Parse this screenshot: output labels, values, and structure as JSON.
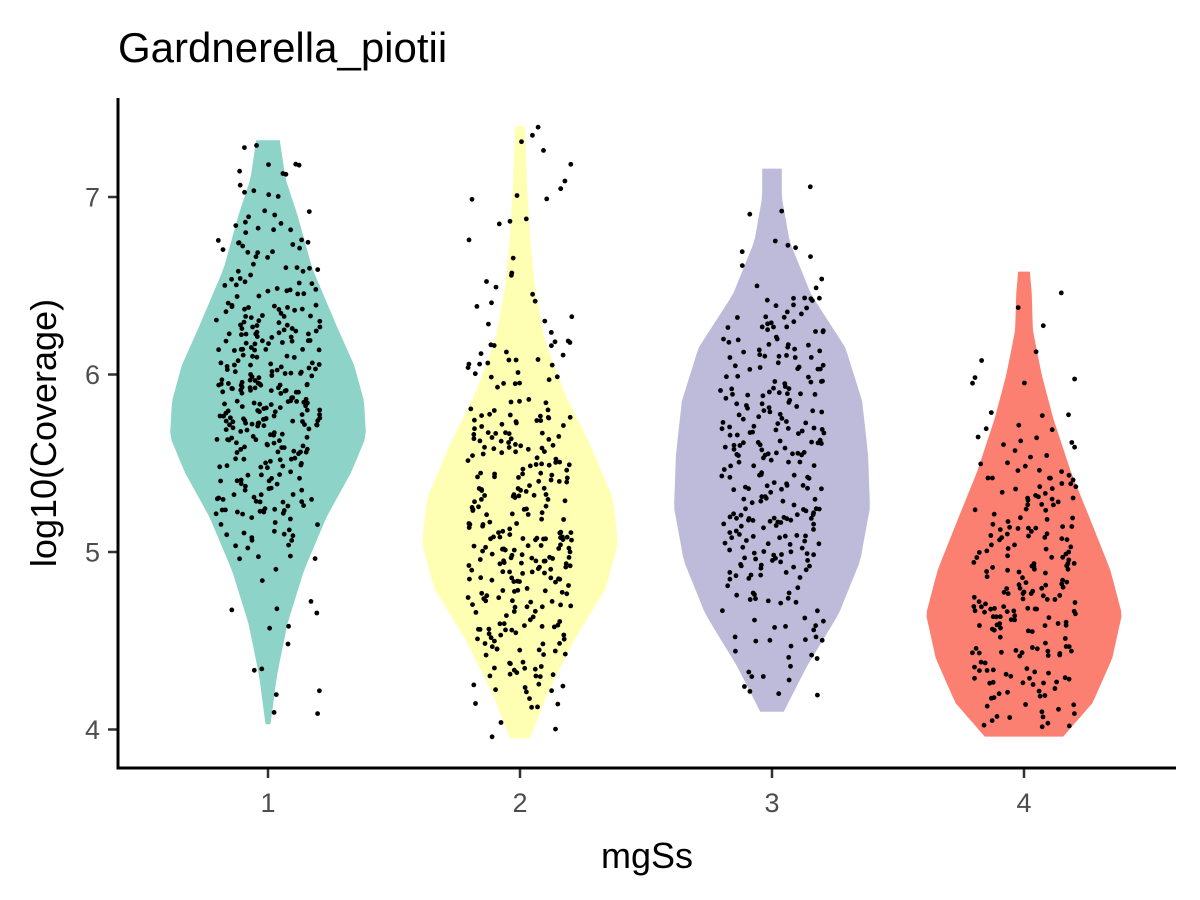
{
  "chart_data": {
    "type": "violin",
    "title": "Gardnerella_piotii",
    "xlabel": "mgSs",
    "ylabel": "log10(Coverage)",
    "categories": [
      "1",
      "2",
      "3",
      "4"
    ],
    "yticks": [
      "4",
      "5",
      "6",
      "7"
    ],
    "ylim": [
      3.8,
      7.55
    ],
    "colors": [
      "#8dd3c7",
      "#ffffb3",
      "#bebada",
      "#fb8072"
    ],
    "point_color": "#000000",
    "grid": false,
    "legend": "none",
    "series": [
      {
        "category": "1",
        "min": 4.03,
        "max": 7.32,
        "median": 5.75,
        "n_points": 360,
        "jitter_seed": 11,
        "density_profile": [
          [
            4.03,
            0.025
          ],
          [
            4.3,
            0.09
          ],
          [
            4.6,
            0.2
          ],
          [
            4.9,
            0.37
          ],
          [
            5.2,
            0.6
          ],
          [
            5.45,
            0.85
          ],
          [
            5.65,
            1.0
          ],
          [
            5.85,
            0.98
          ],
          [
            6.05,
            0.88
          ],
          [
            6.3,
            0.68
          ],
          [
            6.6,
            0.45
          ],
          [
            6.9,
            0.3
          ],
          [
            7.1,
            0.18
          ],
          [
            7.32,
            0.12
          ]
        ],
        "point_levels": [
          [
            4.03,
            0.02
          ],
          [
            4.3,
            0.04
          ],
          [
            4.6,
            0.09
          ],
          [
            4.9,
            0.17
          ],
          [
            5.2,
            0.3
          ],
          [
            5.45,
            0.48
          ],
          [
            5.65,
            0.62
          ],
          [
            5.85,
            0.66
          ],
          [
            6.05,
            0.6
          ],
          [
            6.3,
            0.45
          ],
          [
            6.6,
            0.28
          ],
          [
            6.9,
            0.15
          ],
          [
            7.1,
            0.08
          ],
          [
            7.32,
            0.03
          ]
        ]
      },
      {
        "category": "2",
        "min": 3.95,
        "max": 7.4,
        "median": 5.2,
        "n_points": 330,
        "jitter_seed": 23,
        "density_profile": [
          [
            3.95,
            0.1
          ],
          [
            4.2,
            0.28
          ],
          [
            4.5,
            0.55
          ],
          [
            4.8,
            0.88
          ],
          [
            5.05,
            1.0
          ],
          [
            5.3,
            0.95
          ],
          [
            5.6,
            0.72
          ],
          [
            5.9,
            0.45
          ],
          [
            6.2,
            0.25
          ],
          [
            6.5,
            0.15
          ],
          [
            6.8,
            0.1
          ],
          [
            7.1,
            0.07
          ],
          [
            7.4,
            0.05
          ]
        ],
        "point_levels": [
          [
            3.95,
            0.05
          ],
          [
            4.2,
            0.14
          ],
          [
            4.5,
            0.3
          ],
          [
            4.8,
            0.55
          ],
          [
            5.05,
            0.68
          ],
          [
            5.3,
            0.63
          ],
          [
            5.6,
            0.45
          ],
          [
            5.9,
            0.28
          ],
          [
            6.2,
            0.16
          ],
          [
            6.5,
            0.1
          ],
          [
            6.8,
            0.05
          ],
          [
            7.1,
            0.03
          ],
          [
            7.4,
            0.02
          ]
        ]
      },
      {
        "category": "3",
        "min": 4.1,
        "max": 7.16,
        "median": 5.35,
        "n_points": 300,
        "jitter_seed": 37,
        "density_profile": [
          [
            4.1,
            0.12
          ],
          [
            4.35,
            0.35
          ],
          [
            4.65,
            0.68
          ],
          [
            4.95,
            0.9
          ],
          [
            5.25,
            1.0
          ],
          [
            5.55,
            0.98
          ],
          [
            5.85,
            0.92
          ],
          [
            6.15,
            0.75
          ],
          [
            6.45,
            0.4
          ],
          [
            6.75,
            0.18
          ],
          [
            7.0,
            0.1
          ],
          [
            7.16,
            0.1
          ]
        ],
        "point_levels": [
          [
            4.1,
            0.05
          ],
          [
            4.35,
            0.16
          ],
          [
            4.65,
            0.38
          ],
          [
            4.95,
            0.55
          ],
          [
            5.25,
            0.62
          ],
          [
            5.55,
            0.6
          ],
          [
            5.85,
            0.55
          ],
          [
            6.15,
            0.44
          ],
          [
            6.45,
            0.25
          ],
          [
            6.75,
            0.1
          ],
          [
            7.0,
            0.05
          ],
          [
            7.16,
            0.02
          ]
        ]
      },
      {
        "category": "4",
        "min": 3.96,
        "max": 6.58,
        "median": 4.8,
        "n_points": 230,
        "jitter_seed": 51,
        "density_profile": [
          [
            3.96,
            0.4
          ],
          [
            4.15,
            0.7
          ],
          [
            4.4,
            0.9
          ],
          [
            4.65,
            1.0
          ],
          [
            4.9,
            0.88
          ],
          [
            5.15,
            0.7
          ],
          [
            5.45,
            0.48
          ],
          [
            5.75,
            0.3
          ],
          [
            6.0,
            0.18
          ],
          [
            6.25,
            0.09
          ],
          [
            6.45,
            0.08
          ],
          [
            6.58,
            0.06
          ]
        ],
        "point_levels": [
          [
            3.96,
            0.2
          ],
          [
            4.15,
            0.36
          ],
          [
            4.4,
            0.5
          ],
          [
            4.65,
            0.58
          ],
          [
            4.9,
            0.52
          ],
          [
            5.15,
            0.42
          ],
          [
            5.45,
            0.3
          ],
          [
            5.75,
            0.2
          ],
          [
            6.0,
            0.12
          ],
          [
            6.25,
            0.05
          ],
          [
            6.45,
            0.03
          ],
          [
            6.58,
            0.01
          ]
        ]
      }
    ]
  }
}
